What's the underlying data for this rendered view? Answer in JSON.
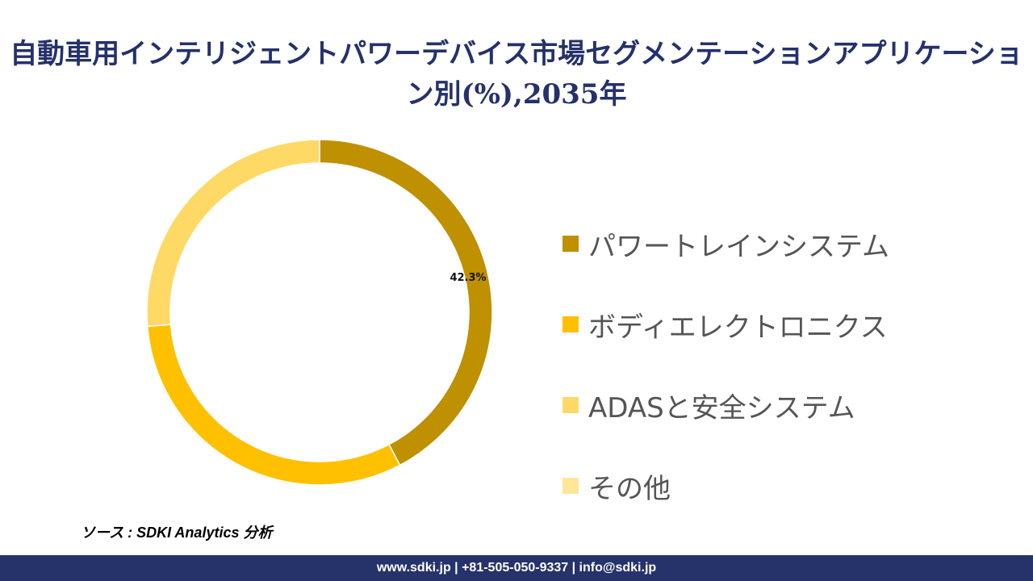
{
  "title": "自動車用インテリジェントパワーデバイス市場セグメンテーションアプリケーション別(%),2035年",
  "chart_data": {
    "type": "pie",
    "donut": true,
    "title": "自動車用インテリジェントパワーデバイス市場セグメンテーションアプリケーション別(%),2035年",
    "categories": [
      "パワートレインシステム",
      "ボディエレクトロニクス",
      "ADASと安全システム",
      "その他"
    ],
    "values": [
      42.3,
      31.4,
      26.3,
      0
    ],
    "colors": [
      "#BF9000",
      "#FFC000",
      "#FFD966",
      "#FFE699"
    ],
    "data_labels": [
      "42.3%",
      "",
      "",
      ""
    ],
    "legend": "right"
  },
  "source": "ソース : SDKI Analytics 分析",
  "footer": "www.sdki.jp | +81-505-050-9337 | info@sdki.jp"
}
